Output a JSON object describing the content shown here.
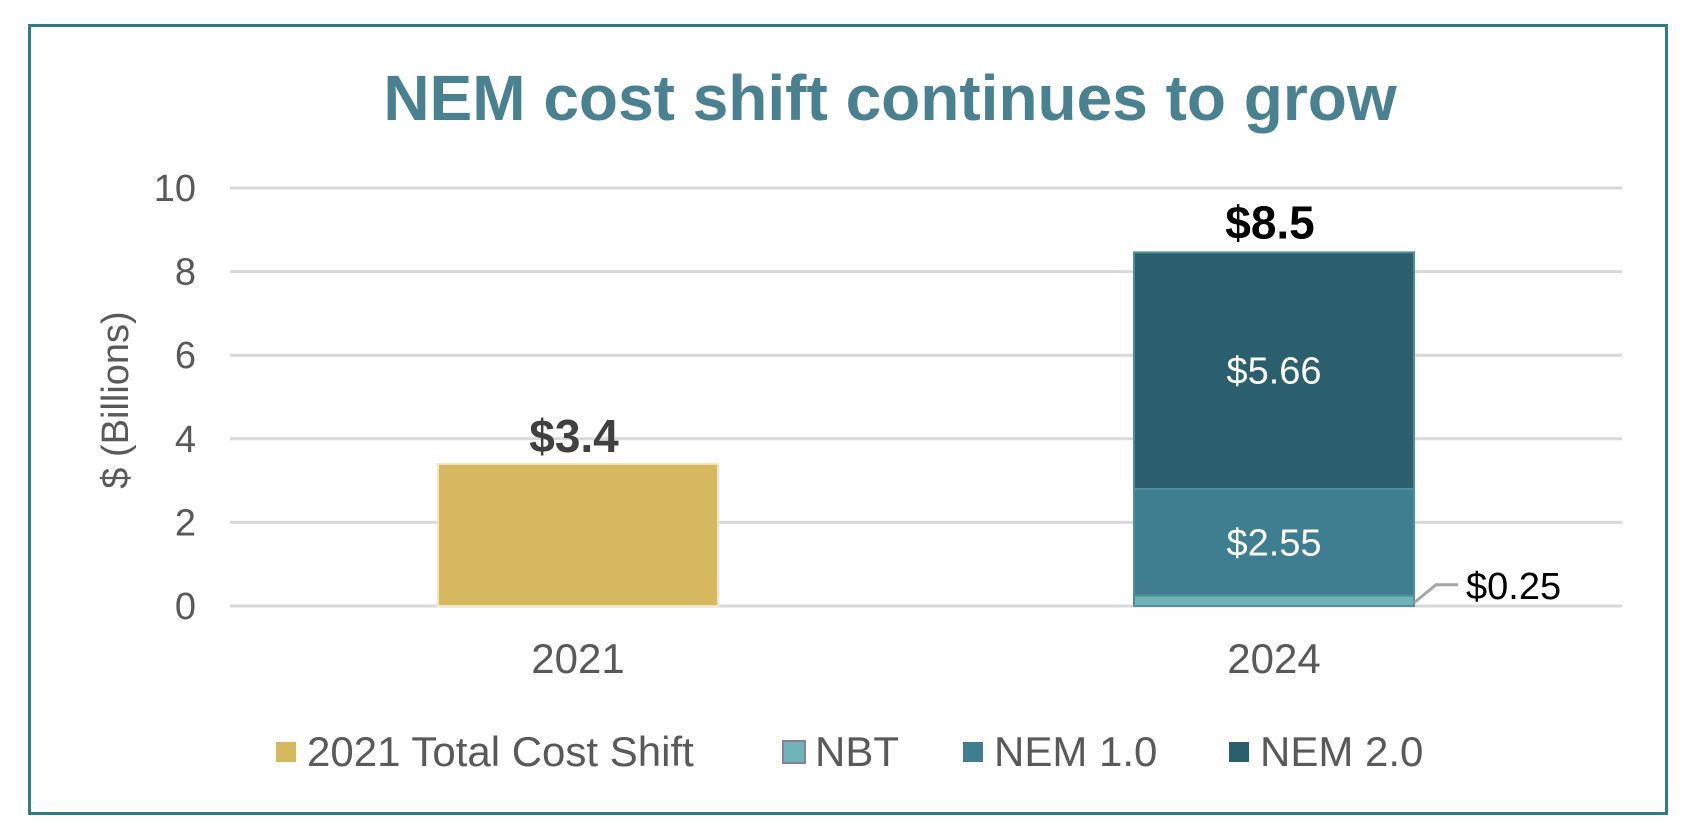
{
  "chart_data": {
    "type": "bar",
    "title": "NEM cost shift continues to grow",
    "ylabel": "$ (Billions)",
    "xlabel": "",
    "ylim": [
      0,
      10
    ],
    "yticks": [
      "0",
      "2",
      "4",
      "6",
      "8",
      "10"
    ],
    "grid": true,
    "legend_position": "bottom",
    "categories": [
      "2021",
      "2024"
    ],
    "series": [
      {
        "name": "2021 Total Cost Shift",
        "color": "#d6b85f",
        "values": [
          3.4,
          0
        ],
        "labels": [
          "",
          ""
        ]
      },
      {
        "name": "NBT",
        "color": "#6fb3b4",
        "values": [
          0,
          0.25
        ],
        "labels": [
          "",
          "$0.25"
        ]
      },
      {
        "name": "NEM 1.0",
        "color": "#3e7e90",
        "values": [
          0,
          2.55
        ],
        "labels": [
          "",
          "$2.55"
        ]
      },
      {
        "name": "NEM 2.0",
        "color": "#2c5f6d",
        "values": [
          0,
          5.66
        ],
        "labels": [
          "",
          "$5.66"
        ]
      }
    ],
    "totals": [
      {
        "category": "2021",
        "value": 3.4,
        "label": "$3.4",
        "color": "#404040"
      },
      {
        "category": "2024",
        "value": 8.5,
        "label": "$8.5",
        "color": "#000000"
      }
    ]
  }
}
